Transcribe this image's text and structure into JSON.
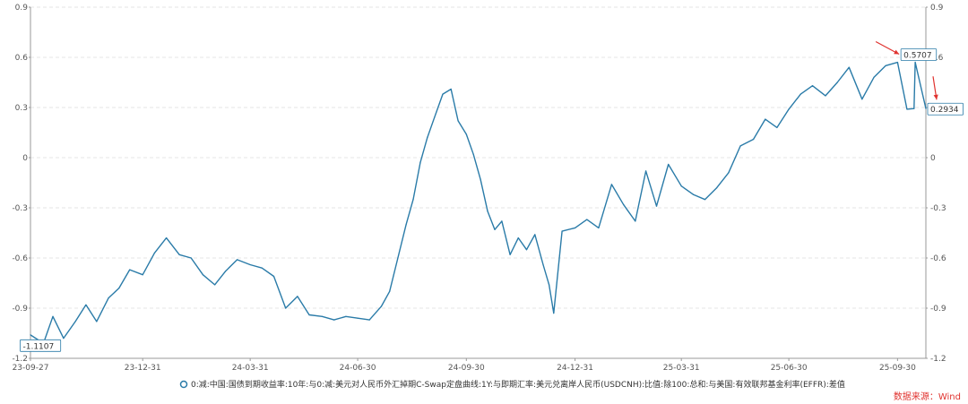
{
  "chart_data": {
    "type": "line",
    "title": "",
    "xlabel": "",
    "ylabel": "",
    "x_ticks": [
      "23-09-27",
      "23-12-31",
      "24-03-31",
      "24-06-30",
      "24-09-30",
      "24-12-31",
      "25-03-31",
      "25-06-30",
      "25-09-30"
    ],
    "ylim": [
      -1.2,
      0.9
    ],
    "y_ticks": [
      "0.9",
      "0.6",
      "0.3",
      "0",
      "-0.3",
      "-0.6",
      "-0.9",
      "-1.2"
    ],
    "y_tick_values": [
      0.9,
      0.6,
      0.3,
      0,
      -0.3,
      -0.6,
      -0.9,
      -1.2
    ],
    "grid": true,
    "legend_position": "bottom-center",
    "series": [
      {
        "name": "0:减:中国:国债到期收益率:10年:与0:减:美元对人民币外汇掉期C-Swap定盘曲线:1Y:与即期汇率:美元兑离岸人民币(USDCNH):比值:除100:总和:与美国:有效联邦基金利率(EFFR):差值",
        "color": "#2a7ba8",
        "x": [
          "2023-09-27",
          "2023-10-08",
          "2023-10-16",
          "2023-10-25",
          "2023-11-04",
          "2023-11-13",
          "2023-11-22",
          "2023-12-02",
          "2023-12-11",
          "2023-12-20",
          "2023-12-31",
          "2024-01-10",
          "2024-01-20",
          "2024-01-31",
          "2024-02-10",
          "2024-02-20",
          "2024-03-01",
          "2024-03-10",
          "2024-03-20",
          "2024-03-31",
          "2024-04-10",
          "2024-04-20",
          "2024-04-30",
          "2024-05-10",
          "2024-05-20",
          "2024-05-31",
          "2024-06-10",
          "2024-06-20",
          "2024-06-30",
          "2024-07-10",
          "2024-07-20",
          "2024-07-27",
          "2024-08-03",
          "2024-08-10",
          "2024-08-16",
          "2024-08-22",
          "2024-08-28",
          "2024-09-03",
          "2024-09-10",
          "2024-09-17",
          "2024-09-23",
          "2024-09-30",
          "2024-10-06",
          "2024-10-12",
          "2024-10-18",
          "2024-10-24",
          "2024-10-30",
          "2024-11-06",
          "2024-11-13",
          "2024-11-20",
          "2024-11-27",
          "2024-12-04",
          "2024-12-09",
          "2024-12-13",
          "2024-12-20",
          "2024-12-31",
          "2025-01-10",
          "2025-01-20",
          "2025-01-31",
          "2025-02-10",
          "2025-02-20",
          "2025-03-01",
          "2025-03-10",
          "2025-03-20",
          "2025-03-31",
          "2025-04-10",
          "2025-04-20",
          "2025-04-30",
          "2025-05-10",
          "2025-05-20",
          "2025-05-31",
          "2025-06-10",
          "2025-06-20",
          "2025-06-30",
          "2025-07-10",
          "2025-07-20",
          "2025-07-31",
          "2025-08-10",
          "2025-08-20",
          "2025-08-31",
          "2025-09-10",
          "2025-09-20",
          "2025-09-30",
          "2025-10-08",
          "2025-10-14",
          "2025-10-15",
          "2025-10-24"
        ],
        "values": [
          -1.06,
          -1.11,
          -0.95,
          -1.08,
          -0.98,
          -0.88,
          -0.98,
          -0.84,
          -0.78,
          -0.67,
          -0.7,
          -0.57,
          -0.48,
          -0.58,
          -0.6,
          -0.7,
          -0.76,
          -0.68,
          -0.61,
          -0.64,
          -0.66,
          -0.71,
          -0.9,
          -0.83,
          -0.94,
          -0.95,
          -0.97,
          -0.95,
          -0.96,
          -0.97,
          -0.89,
          -0.8,
          -0.6,
          -0.4,
          -0.25,
          -0.03,
          0.12,
          0.24,
          0.38,
          0.41,
          0.22,
          0.14,
          0.02,
          -0.13,
          -0.32,
          -0.43,
          -0.38,
          -0.58,
          -0.48,
          -0.55,
          -0.46,
          -0.64,
          -0.76,
          -0.93,
          -0.44,
          -0.42,
          -0.37,
          -0.42,
          -0.16,
          -0.28,
          -0.38,
          -0.08,
          -0.29,
          -0.04,
          -0.17,
          -0.22,
          -0.25,
          -0.18,
          -0.09,
          0.07,
          0.11,
          0.23,
          0.18,
          0.29,
          0.38,
          0.43,
          0.37,
          0.45,
          0.54,
          0.35,
          0.48,
          0.55,
          0.57,
          0.29,
          0.2934,
          0.5707,
          0.2934
        ]
      }
    ],
    "annotations": [
      {
        "text": "-1.1107",
        "x": "2023-10-08",
        "y": -1.1107,
        "arrow": false
      },
      {
        "text": "0.5707",
        "x": "2025-10-15",
        "y": 0.5707,
        "arrow": true
      },
      {
        "text": "0.2934",
        "x": "2025-10-24",
        "y": 0.2934,
        "arrow": true
      }
    ]
  },
  "source_label": "数据来源：Wind",
  "colors": {
    "line": "#2a7ba8",
    "arrow": "#e0332f",
    "grid": "#e6e6e6",
    "axis": "#555555",
    "source": "#e0332f"
  }
}
